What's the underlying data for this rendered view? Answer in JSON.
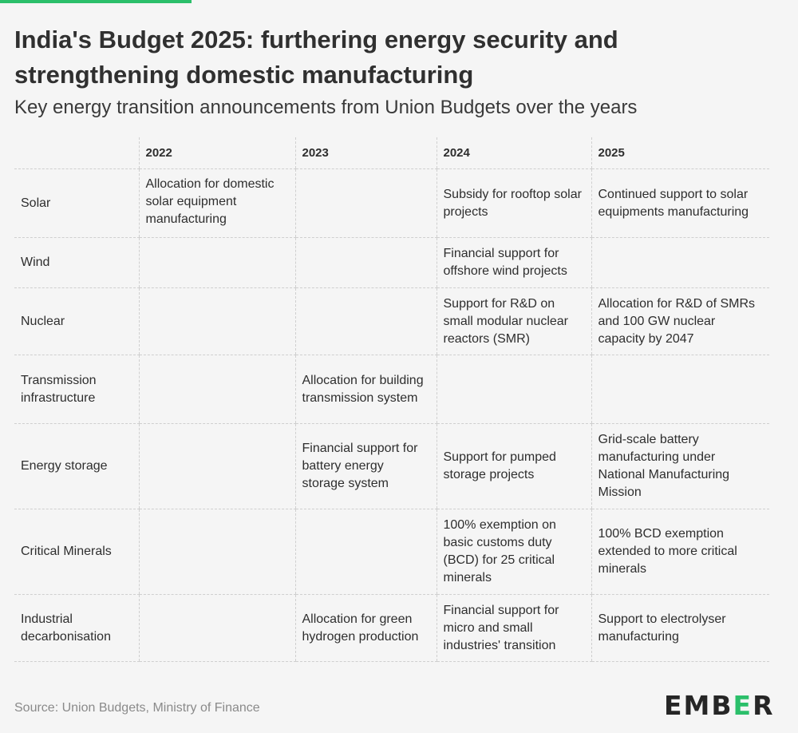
{
  "title": "India's Budget 2025: furthering energy security and strengthening domestic manufacturing",
  "subtitle": "Key energy transition announcements from Union Budgets over the years",
  "source": "Source: Union Budgets, Ministry of Finance",
  "logo": {
    "text": "EMBER",
    "accent_color": "#2bbf6a"
  },
  "chart_data": {
    "type": "table",
    "title": "India's Budget 2025: furthering energy security and strengthening domestic manufacturing",
    "subtitle": "Key energy transition announcements from Union Budgets over the years",
    "columns": [
      "",
      "2022",
      "2023",
      "2024",
      "2025"
    ],
    "rows": [
      {
        "label": "Solar",
        "cells": [
          "Allocation for domestic solar equipment manufacturing",
          "",
          "Subsidy for rooftop solar projects",
          "Continued support to solar equipments manufacturing"
        ]
      },
      {
        "label": "Wind",
        "cells": [
          "",
          "",
          "Financial support for offshore wind projects",
          ""
        ]
      },
      {
        "label": "Nuclear",
        "cells": [
          "",
          "",
          "Support for R&D on small modular nuclear reactors (SMR)",
          "Allocation for R&D of SMRs and 100 GW nuclear capacity by 2047"
        ]
      },
      {
        "label": "Transmission infrastructure",
        "cells": [
          "",
          "Allocation for building transmission system",
          "",
          ""
        ]
      },
      {
        "label": "Energy storage",
        "cells": [
          "",
          "Financial support for battery energy storage system",
          "Support for pumped storage projects",
          "Grid-scale battery manufacturing under National Manufacturing Mission"
        ]
      },
      {
        "label": "Critical Minerals",
        "cells": [
          "",
          "",
          "100% exemption on basic customs duty (BCD) for 25 critical minerals",
          "100% BCD exemption extended to more critical minerals"
        ]
      },
      {
        "label": "Industrial decarbonisation",
        "cells": [
          "",
          "Allocation for green hydrogen production",
          "Financial support for micro and small industries' transition",
          "Support to electrolyser manufacturing"
        ]
      }
    ]
  }
}
